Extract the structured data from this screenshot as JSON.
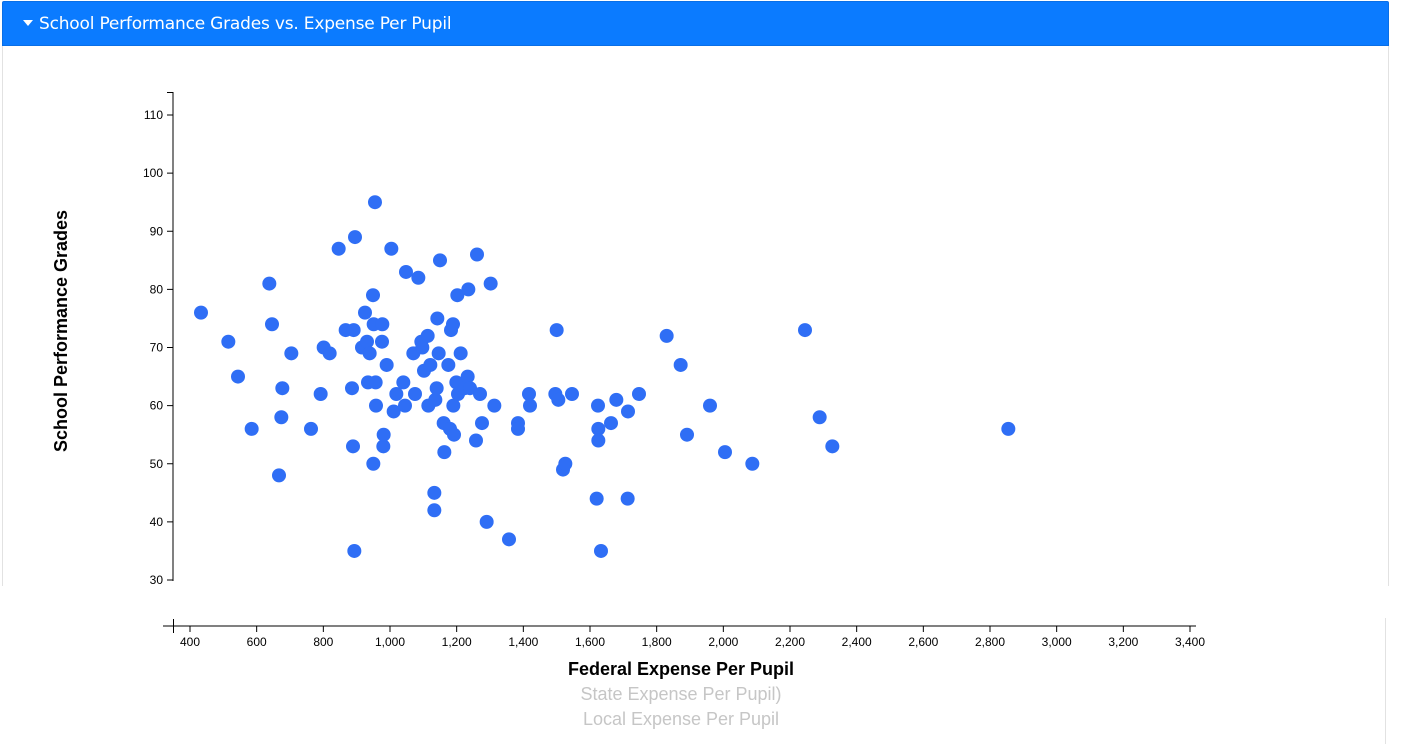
{
  "panel": {
    "title": "School Performance Grades vs. Expense Per Pupil",
    "header_color": "#0b7bff"
  },
  "colors": {
    "dot": "#2f6ef5",
    "inactive_axis_label": "#c6c6c6"
  },
  "axis_options": {
    "active": "Federal Expense Per Pupil",
    "state": "State Expense Per Pupil)",
    "local": "Local Expense Per Pupil"
  },
  "chart_data": {
    "type": "scatter",
    "title": "School Performance Grades vs. Expense Per Pupil",
    "xlabel": "Federal Expense Per Pupil",
    "ylabel": "School Performance Grades",
    "xlim": [
      400,
      3400
    ],
    "ylim": [
      30,
      110
    ],
    "x_ticks": [
      400,
      600,
      800,
      1000,
      1200,
      1400,
      1600,
      1800,
      2000,
      2200,
      2400,
      2600,
      2800,
      3000,
      3200,
      3400
    ],
    "y_ticks": [
      30,
      40,
      50,
      60,
      70,
      80,
      90,
      100,
      110
    ],
    "grid": false,
    "series": [
      {
        "color": "#2f6ef5",
        "points": [
          [
            433,
            76
          ],
          [
            515,
            71
          ],
          [
            544,
            65
          ],
          [
            585,
            56
          ],
          [
            638,
            81
          ],
          [
            646,
            74
          ],
          [
            667,
            48
          ],
          [
            674,
            58
          ],
          [
            677,
            63
          ],
          [
            704,
            69
          ],
          [
            763,
            56
          ],
          [
            792,
            62
          ],
          [
            801,
            70
          ],
          [
            819,
            69
          ],
          [
            846,
            87
          ],
          [
            867,
            73
          ],
          [
            886,
            63
          ],
          [
            889,
            53
          ],
          [
            893,
            35
          ],
          [
            895,
            89
          ],
          [
            891,
            73
          ],
          [
            916,
            70
          ],
          [
            925,
            76
          ],
          [
            931,
            71
          ],
          [
            934,
            64
          ],
          [
            939,
            69
          ],
          [
            949,
            79
          ],
          [
            951,
            74
          ],
          [
            950,
            50
          ],
          [
            955,
            95
          ],
          [
            957,
            64
          ],
          [
            958,
            60
          ],
          [
            976,
            71
          ],
          [
            977,
            74
          ],
          [
            980,
            53
          ],
          [
            981,
            55
          ],
          [
            990,
            67
          ],
          [
            1004,
            87
          ],
          [
            1011,
            59
          ],
          [
            1019,
            62
          ],
          [
            1040,
            64
          ],
          [
            1045,
            60
          ],
          [
            1048,
            83
          ],
          [
            1070,
            69
          ],
          [
            1075,
            62
          ],
          [
            1085,
            82
          ],
          [
            1094,
            71
          ],
          [
            1097,
            70
          ],
          [
            1102,
            66
          ],
          [
            1113,
            72
          ],
          [
            1115,
            60
          ],
          [
            1121,
            67
          ],
          [
            1133,
            45
          ],
          [
            1133,
            42
          ],
          [
            1136,
            61
          ],
          [
            1140,
            63
          ],
          [
            1142,
            75
          ],
          [
            1146,
            69
          ],
          [
            1150,
            85
          ],
          [
            1161,
            57
          ],
          [
            1163,
            52
          ],
          [
            1175,
            67
          ],
          [
            1180,
            56
          ],
          [
            1183,
            73
          ],
          [
            1189,
            74
          ],
          [
            1190,
            60
          ],
          [
            1192,
            55
          ],
          [
            1199,
            64
          ],
          [
            1202,
            79
          ],
          [
            1204,
            62
          ],
          [
            1212,
            69
          ],
          [
            1224,
            63
          ],
          [
            1233,
            65
          ],
          [
            1235,
            80
          ],
          [
            1240,
            63
          ],
          [
            1258,
            54
          ],
          [
            1261,
            86
          ],
          [
            1270,
            62
          ],
          [
            1276,
            57
          ],
          [
            1290,
            40
          ],
          [
            1302,
            81
          ],
          [
            1313,
            60
          ],
          [
            1357,
            37
          ],
          [
            1384,
            57
          ],
          [
            1384,
            56
          ],
          [
            1417,
            62
          ],
          [
            1420,
            60
          ],
          [
            1496,
            62
          ],
          [
            1500,
            73
          ],
          [
            1505,
            61
          ],
          [
            1519,
            49
          ],
          [
            1526,
            50
          ],
          [
            1546,
            62
          ],
          [
            1620,
            44
          ],
          [
            1624,
            60
          ],
          [
            1625,
            56
          ],
          [
            1625,
            54
          ],
          [
            1633,
            35
          ],
          [
            1663,
            57
          ],
          [
            1679,
            61
          ],
          [
            1713,
            44
          ],
          [
            1714,
            59
          ],
          [
            1747,
            62
          ],
          [
            1830,
            72
          ],
          [
            1872,
            67
          ],
          [
            1891,
            55
          ],
          [
            1960,
            60
          ],
          [
            2005,
            52
          ],
          [
            2087,
            50
          ],
          [
            2245,
            73
          ],
          [
            2289,
            58
          ],
          [
            2327,
            53
          ],
          [
            2855,
            56
          ]
        ]
      }
    ]
  }
}
